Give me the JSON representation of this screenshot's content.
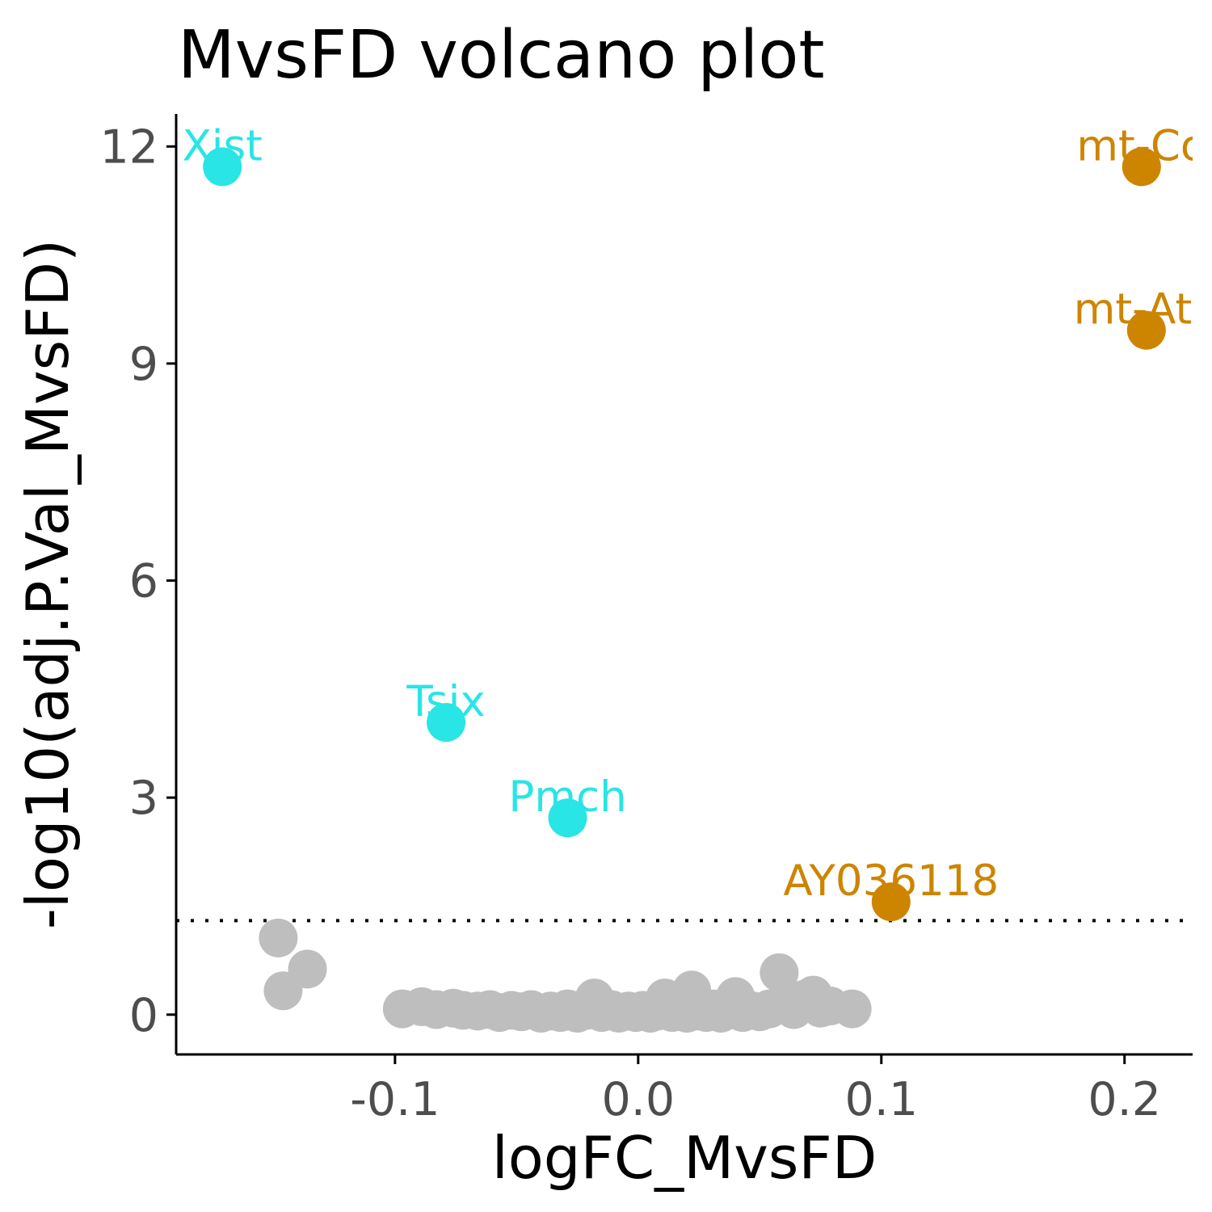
{
  "chart_data": {
    "type": "scatter",
    "title": "MvsFD volcano plot",
    "xlabel": "logFC_MvsFD",
    "ylabel": "-log10(adj.P.Val_MvsFD)",
    "xlim": [
      -0.19,
      0.228
    ],
    "ylim": [
      -0.55,
      12.45
    ],
    "x_ticks": [
      {
        "value": -0.1,
        "label": "-0.1"
      },
      {
        "value": 0.0,
        "label": "0.0"
      },
      {
        "value": 0.1,
        "label": "0.1"
      },
      {
        "value": 0.2,
        "label": "0.2"
      }
    ],
    "y_ticks": [
      {
        "value": 0,
        "label": "0"
      },
      {
        "value": 3,
        "label": "3"
      },
      {
        "value": 6,
        "label": "6"
      },
      {
        "value": 9,
        "label": "9"
      },
      {
        "value": 12,
        "label": "12"
      }
    ],
    "threshold_y": 1.3,
    "grid": false,
    "legend": "none",
    "colors": {
      "down": "#29e5e5",
      "up": "#cd8500",
      "ns": "#bebebe",
      "threshold": "#000000"
    },
    "labeled_points": [
      {
        "label": "Xist",
        "x": -0.171,
        "y": 11.72,
        "group": "down"
      },
      {
        "label": "Tsix",
        "x": -0.079,
        "y": 4.04,
        "group": "down"
      },
      {
        "label": "Pmch",
        "x": -0.029,
        "y": 2.72,
        "group": "down"
      },
      {
        "label": "AY036118",
        "x": 0.104,
        "y": 1.56,
        "group": "up"
      },
      {
        "label": "mt-Co",
        "x": 0.207,
        "y": 11.72,
        "group": "up"
      },
      {
        "label": "mt-Atp",
        "x": 0.209,
        "y": 9.46,
        "group": "up"
      }
    ],
    "ns_points": [
      [
        -0.148,
        1.06
      ],
      [
        -0.136,
        0.63
      ],
      [
        -0.146,
        0.33
      ],
      [
        -0.097,
        0.08
      ],
      [
        -0.089,
        0.11
      ],
      [
        -0.083,
        0.07
      ],
      [
        -0.076,
        0.09
      ],
      [
        -0.072,
        0.06
      ],
      [
        -0.066,
        0.05
      ],
      [
        -0.061,
        0.07
      ],
      [
        -0.057,
        0.03
      ],
      [
        -0.052,
        0.06
      ],
      [
        -0.048,
        0.04
      ],
      [
        -0.044,
        0.07
      ],
      [
        -0.04,
        0.02
      ],
      [
        -0.036,
        0.05
      ],
      [
        -0.032,
        0.03
      ],
      [
        -0.029,
        0.08
      ],
      [
        -0.025,
        0.02
      ],
      [
        -0.021,
        0.06
      ],
      [
        -0.018,
        0.23
      ],
      [
        -0.015,
        0.03
      ],
      [
        -0.011,
        0.07
      ],
      [
        -0.008,
        0.02
      ],
      [
        -0.004,
        0.05
      ],
      [
        -0.001,
        0.03
      ],
      [
        0.002,
        0.06
      ],
      [
        0.005,
        0.02
      ],
      [
        0.008,
        0.05
      ],
      [
        0.011,
        0.23
      ],
      [
        0.014,
        0.03
      ],
      [
        0.017,
        0.07
      ],
      [
        0.02,
        0.02
      ],
      [
        0.022,
        0.34
      ],
      [
        0.025,
        0.05
      ],
      [
        0.028,
        0.03
      ],
      [
        0.031,
        0.08
      ],
      [
        0.034,
        0.02
      ],
      [
        0.037,
        0.06
      ],
      [
        0.04,
        0.25
      ],
      [
        0.043,
        0.03
      ],
      [
        0.046,
        0.06
      ],
      [
        0.05,
        0.04
      ],
      [
        0.054,
        0.08
      ],
      [
        0.058,
        0.58
      ],
      [
        0.061,
        0.16
      ],
      [
        0.064,
        0.07
      ],
      [
        0.068,
        0.21
      ],
      [
        0.072,
        0.27
      ],
      [
        0.075,
        0.09
      ],
      [
        0.079,
        0.12
      ],
      [
        0.088,
        0.08
      ]
    ]
  }
}
